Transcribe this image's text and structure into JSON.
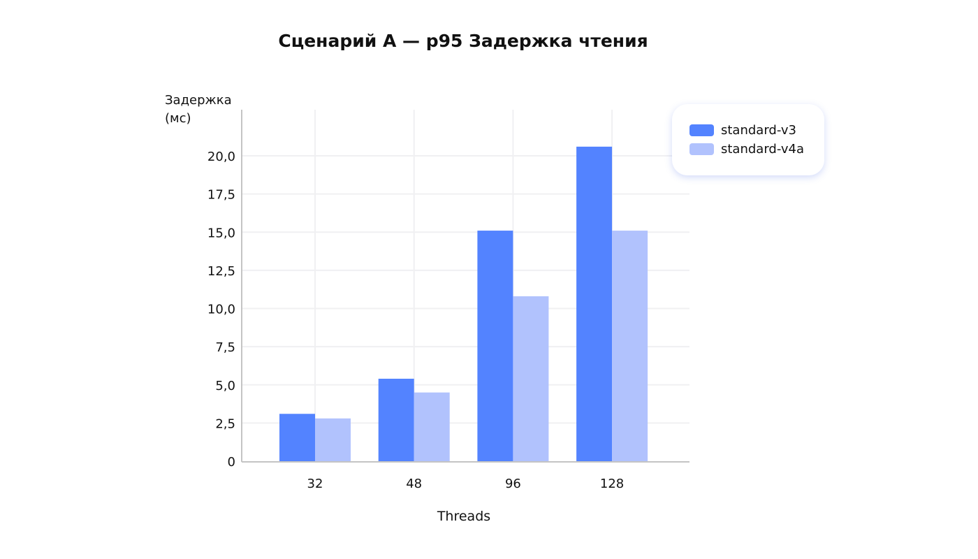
{
  "chart_data": {
    "type": "bar",
    "title": "Сценарий А — p95 Задержка чтения",
    "xlabel": "Threads",
    "ylabel": "Задержка (мс)",
    "categories": [
      "32",
      "48",
      "96",
      "128"
    ],
    "series": [
      {
        "name": "standard-v3",
        "color": "#5383ff",
        "values": [
          3.1,
          5.4,
          15.1,
          20.6
        ]
      },
      {
        "name": "standard-v4a",
        "color": "#b1c2fd",
        "values": [
          2.8,
          4.5,
          10.8,
          15.1
        ]
      }
    ],
    "ylim": [
      0,
      22.9
    ],
    "yticks": [
      "0",
      "2,5",
      "5,0",
      "7,5",
      "10,0",
      "12,5",
      "15,0",
      "17,5",
      "20,0"
    ],
    "ytick_values": [
      0,
      2.5,
      5,
      7.5,
      10,
      12.5,
      15,
      17.5,
      20
    ],
    "grid": true,
    "legend": "top-right"
  }
}
